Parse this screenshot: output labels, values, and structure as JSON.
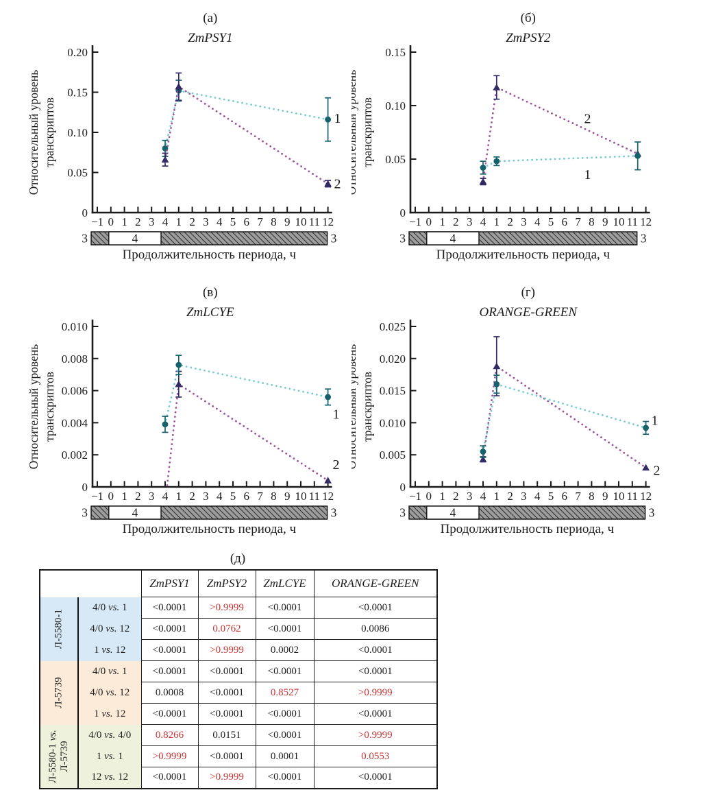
{
  "chart_data": [
    {
      "type": "line",
      "panel_label": "(а)",
      "title": "ZmPSY1",
      "ylabel_lines": [
        "Относительный уровень",
        "транскриптов"
      ],
      "xlabel": "Продолжительность периода, ч",
      "ylim": [
        0,
        0.2
      ],
      "yticks": [
        0,
        0.05,
        0.1,
        0.15,
        0.2
      ],
      "ytick_labels": [
        "0",
        "0.05",
        "0.10",
        "0.15",
        "0.20"
      ],
      "xtick_labels": [
        "−1",
        "0",
        "1",
        "2",
        "3",
        "4",
        "1",
        "2",
        "3",
        "4",
        "5",
        "6",
        "7",
        "8",
        "9",
        "10",
        "11",
        "12"
      ],
      "grid": false,
      "series": [
        {
          "name": "1",
          "marker": "circle",
          "line_color": "#7accd4",
          "marker_color": "#15626c",
          "points": [
            {
              "t": 5,
              "y": 0.08,
              "err": 0.01
            },
            {
              "t": 6,
              "y": 0.152,
              "err": 0.013
            },
            {
              "t": 17,
              "y": 0.116,
              "err": 0.027
            }
          ],
          "label_pos": {
            "t": 17.45,
            "y": 0.118
          }
        },
        {
          "name": "2",
          "marker": "triangle",
          "line_color": "#9c559c",
          "marker_color": "#322b65",
          "points": [
            {
              "t": 5,
              "y": 0.066,
              "err": 0.008
            },
            {
              "t": 6,
              "y": 0.157,
              "err": 0.017
            },
            {
              "t": 17,
              "y": 0.036,
              "err": 0.004
            }
          ],
          "label_pos": {
            "t": 17.45,
            "y": 0.0365
          }
        }
      ],
      "period_bar": {
        "left_label": "3",
        "white_label": "4",
        "right_label": "3",
        "white_from": 1,
        "white_to": 5,
        "end": 17
      }
    },
    {
      "type": "line",
      "panel_label": "(б)",
      "title": "ZmPSY2",
      "ylabel_lines": [
        "Относительный уровень",
        "транскриптов"
      ],
      "xlabel": "Продолжительность периода, ч",
      "ylim": [
        0,
        0.15
      ],
      "yticks": [
        0,
        0.05,
        0.1,
        0.15
      ],
      "ytick_labels": [
        "0",
        "0.05",
        "0.10",
        "0.15"
      ],
      "xtick_labels": [
        "−1",
        "0",
        "1",
        "2",
        "3",
        "4",
        "1",
        "2",
        "3",
        "4",
        "5",
        "6",
        "7",
        "8",
        "9",
        "10",
        "11",
        "12"
      ],
      "grid": false,
      "series": [
        {
          "name": "2",
          "marker": "triangle",
          "line_color": "#9c559c",
          "marker_color": "#322b65",
          "points": [
            {
              "t": 5,
              "y": 0.029,
              "err": 0.003
            },
            {
              "t": 6,
              "y": 0.117,
              "err": 0.011
            },
            {
              "t": 16.4,
              "y": 0.055,
              "err": 0
            }
          ],
          "label_pos": {
            "t": 12.45,
            "y": 0.088
          }
        },
        {
          "name": "1",
          "marker": "circle",
          "line_color": "#7accd4",
          "marker_color": "#15626c",
          "points": [
            {
              "t": 5,
              "y": 0.042,
              "err": 0.006
            },
            {
              "t": 6,
              "y": 0.048,
              "err": 0.004
            },
            {
              "t": 16.4,
              "y": 0.053,
              "err": 0.013
            }
          ],
          "label_pos": {
            "t": 12.45,
            "y": 0.036
          }
        }
      ],
      "period_bar": {
        "left_label": "3",
        "white_label": "4",
        "right_label": "3",
        "white_from": 1,
        "white_to": 5,
        "end": 16.4
      }
    },
    {
      "type": "line",
      "panel_label": "(в)",
      "title": "ZmLCYE",
      "ylabel_lines": [
        "Относительный уровень",
        "транскриптов"
      ],
      "xlabel": "Продолжительность периода, ч",
      "ylim": [
        0,
        0.01
      ],
      "yticks": [
        0,
        0.002,
        0.004,
        0.006,
        0.008,
        0.01
      ],
      "ytick_labels": [
        "0",
        "0.002",
        "0.004",
        "0.006",
        "0.008",
        "0.010"
      ],
      "xtick_labels": [
        "−1",
        "0",
        "1",
        "2",
        "3",
        "4",
        "1",
        "2",
        "3",
        "4",
        "5",
        "6",
        "7",
        "8",
        "9",
        "10",
        "11",
        "12"
      ],
      "grid": false,
      "series": [
        {
          "name": "2",
          "marker": "triangle",
          "line_color": "#9c559c",
          "marker_color": "#322b65",
          "points": [
            {
              "t": 5.15,
              "y": 0.0001,
              "err": 0,
              "no_marker": true
            },
            {
              "t": 6,
              "y": 0.0064,
              "err": 0.0008
            },
            {
              "t": 17,
              "y": 0.0004,
              "err": 0
            }
          ],
          "label_pos": {
            "t": 17.35,
            "y": 0.0014
          }
        },
        {
          "name": "1",
          "marker": "circle",
          "line_color": "#7accd4",
          "marker_color": "#15626c",
          "points": [
            {
              "t": 5,
              "y": 0.0039,
              "err": 0.0005
            },
            {
              "t": 6,
              "y": 0.0076,
              "err": 0.0006
            },
            {
              "t": 17,
              "y": 0.0056,
              "err": 0.0005
            }
          ],
          "label_pos": {
            "t": 17.35,
            "y": 0.00455
          }
        }
      ],
      "period_bar": {
        "left_label": "3",
        "white_label": "4",
        "right_label": "3",
        "white_from": 1,
        "white_to": 5,
        "end": 17
      }
    },
    {
      "type": "line",
      "panel_label": "(г)",
      "title": "ORANGE-GREEN",
      "ylabel_lines": [
        "Относительный уровень",
        "транскриптов"
      ],
      "xlabel": "Продолжительность периода, ч",
      "ylim": [
        0,
        0.025
      ],
      "yticks": [
        0,
        0.005,
        0.01,
        0.015,
        0.02,
        0.025
      ],
      "ytick_labels": [
        "0",
        "0.005",
        "0.010",
        "0.015",
        "0.020",
        "0.025"
      ],
      "xtick_labels": [
        "−1",
        "0",
        "1",
        "2",
        "3",
        "4",
        "1",
        "2",
        "3",
        "4",
        "5",
        "6",
        "7",
        "8",
        "9",
        "10",
        "11",
        "12"
      ],
      "grid": false,
      "series": [
        {
          "name": "2",
          "marker": "triangle",
          "line_color": "#9c559c",
          "marker_color": "#322b65",
          "points": [
            {
              "t": 5,
              "y": 0.0043,
              "err": 0.0004
            },
            {
              "t": 6,
              "y": 0.0188,
              "err": 0.0046
            },
            {
              "t": 17,
              "y": 0.003,
              "err": 0
            }
          ],
          "label_pos": {
            "t": 17.55,
            "y": 0.0026
          }
        },
        {
          "name": "1",
          "marker": "circle",
          "line_color": "#7accd4",
          "marker_color": "#15626c",
          "points": [
            {
              "t": 5,
              "y": 0.0055,
              "err": 0.0009
            },
            {
              "t": 6,
              "y": 0.016,
              "err": 0.0014
            },
            {
              "t": 17,
              "y": 0.0092,
              "err": 0.001
            }
          ],
          "label_pos": {
            "t": 17.4,
            "y": 0.0104
          }
        }
      ],
      "period_bar": {
        "left_label": "3",
        "white_label": "4",
        "right_label": "3",
        "white_from": 1,
        "white_to": 5,
        "end": 17
      }
    }
  ],
  "table": {
    "panel_label": "(д)",
    "columns": [
      "ZmPSY1",
      "ZmPSY2",
      "ZmLCYE",
      "ORANGE-GREEN"
    ],
    "red_color": "#c63434",
    "groups": [
      {
        "label": "Л-5580-1",
        "color": "#d7e9f7",
        "rows": [
          {
            "comparison": "4/0 vs. 1",
            "values": [
              {
                "text": "<0.0001",
                "red": false
              },
              {
                "text": ">0.9999",
                "red": true
              },
              {
                "text": "<0.0001",
                "red": false
              },
              {
                "text": "<0.0001",
                "red": false
              }
            ]
          },
          {
            "comparison": "4/0 vs. 12",
            "values": [
              {
                "text": "<0.0001",
                "red": false
              },
              {
                "text": "0.0762",
                "red": true
              },
              {
                "text": "<0.0001",
                "red": false
              },
              {
                "text": "0.0086",
                "red": false
              }
            ]
          },
          {
            "comparison": "1 vs. 12",
            "values": [
              {
                "text": "<0.0001",
                "red": false
              },
              {
                "text": ">0.9999",
                "red": true
              },
              {
                "text": "0.0002",
                "red": false
              },
              {
                "text": "<0.0001",
                "red": false
              }
            ]
          }
        ]
      },
      {
        "label": "Л-5739",
        "color": "#fdebd9",
        "rows": [
          {
            "comparison": "4/0 vs. 1",
            "values": [
              {
                "text": "<0.0001",
                "red": false
              },
              {
                "text": "<0.0001",
                "red": false
              },
              {
                "text": "<0.0001",
                "red": false
              },
              {
                "text": "<0.0001",
                "red": false
              }
            ]
          },
          {
            "comparison": "4/0 vs. 12",
            "values": [
              {
                "text": "0.0008",
                "red": false
              },
              {
                "text": "<0.0001",
                "red": false
              },
              {
                "text": "0.8527",
                "red": true
              },
              {
                "text": ">0.9999",
                "red": true
              }
            ]
          },
          {
            "comparison": "1 vs. 12",
            "values": [
              {
                "text": "<0.0001",
                "red": false
              },
              {
                "text": "<0.0001",
                "red": false
              },
              {
                "text": "<0.0001",
                "red": false
              },
              {
                "text": "<0.0001",
                "red": false
              }
            ]
          }
        ]
      },
      {
        "label": "Л-5580-1 vs. Л-5739",
        "color": "#eef2dc",
        "rows": [
          {
            "comparison": "4/0 vs. 4/0",
            "values": [
              {
                "text": "0.8266",
                "red": true
              },
              {
                "text": "0.0151",
                "red": false
              },
              {
                "text": "<0.0001",
                "red": false
              },
              {
                "text": ">0.9999",
                "red": true
              }
            ]
          },
          {
            "comparison": "1 vs. 1",
            "values": [
              {
                "text": ">0.9999",
                "red": true
              },
              {
                "text": "<0.0001",
                "red": false
              },
              {
                "text": "0.0001",
                "red": false
              },
              {
                "text": "0.0553",
                "red": true
              }
            ]
          },
          {
            "comparison": "12 vs. 12",
            "values": [
              {
                "text": "<0.0001",
                "red": false
              },
              {
                "text": ">0.9999",
                "red": true
              },
              {
                "text": "<0.0001",
                "red": false
              },
              {
                "text": "<0.0001",
                "red": false
              }
            ]
          }
        ]
      }
    ]
  }
}
